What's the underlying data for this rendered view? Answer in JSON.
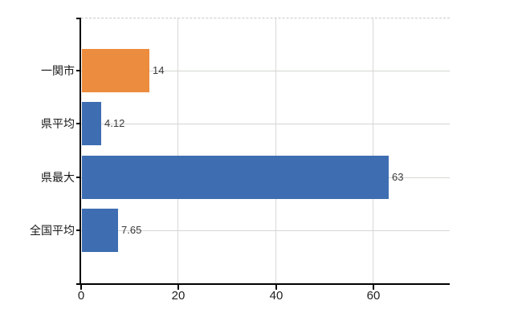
{
  "chart_data": {
    "type": "bar",
    "orientation": "horizontal",
    "title": "",
    "xlabel": "",
    "ylabel": "",
    "categories": [
      "一関市",
      "県平均",
      "県最大",
      "全国平均"
    ],
    "values": [
      14,
      4.12,
      63,
      7.65
    ],
    "value_labels": [
      "14",
      "4.12",
      "63",
      "7.65"
    ],
    "bar_colors": [
      "#EC8C3E",
      "#3E6EB1",
      "#3E6EB1",
      "#3E6EB1"
    ],
    "x_ticks": [
      0,
      20,
      40,
      60
    ],
    "x_tick_labels": [
      "0",
      "20",
      "40",
      "60"
    ],
    "xlim": [
      0,
      75.6
    ],
    "grid": true,
    "legend": false,
    "plot_border_top": "dashed"
  },
  "style": {
    "background": "#ffffff",
    "axis_color": "#000000",
    "grid_color_h": "#d3d6d1",
    "grid_color_v": "#d8d8d8",
    "border_dash_color": "#c9c9c9",
    "category_label_color": "#1a1a1a",
    "value_label_color": "#3a3a3a",
    "tick_label_color": "#222222"
  }
}
